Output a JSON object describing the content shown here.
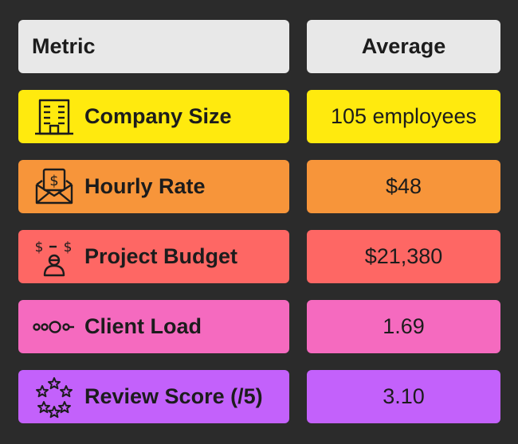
{
  "header": {
    "metric_label": "Metric",
    "average_label": "Average",
    "color": "#e8e8e8"
  },
  "rows": [
    {
      "label": "Company Size",
      "value": "105 employees",
      "icon": "office-building-icon",
      "color": "#ffea0e"
    },
    {
      "label": "Hourly Rate",
      "value": "$48",
      "icon": "envelope-dollar-icon",
      "color": "#f7953a"
    },
    {
      "label": "Project Budget",
      "value": "$21,380",
      "icon": "person-money-icon",
      "color": "#fe6764"
    },
    {
      "label": "Client Load",
      "value": "1.69",
      "icon": "circles-load-icon",
      "color": "#f56abf"
    },
    {
      "label": "Review Score (/5)",
      "value": "3.10",
      "icon": "stars-icon",
      "color": "#c361fb"
    }
  ]
}
